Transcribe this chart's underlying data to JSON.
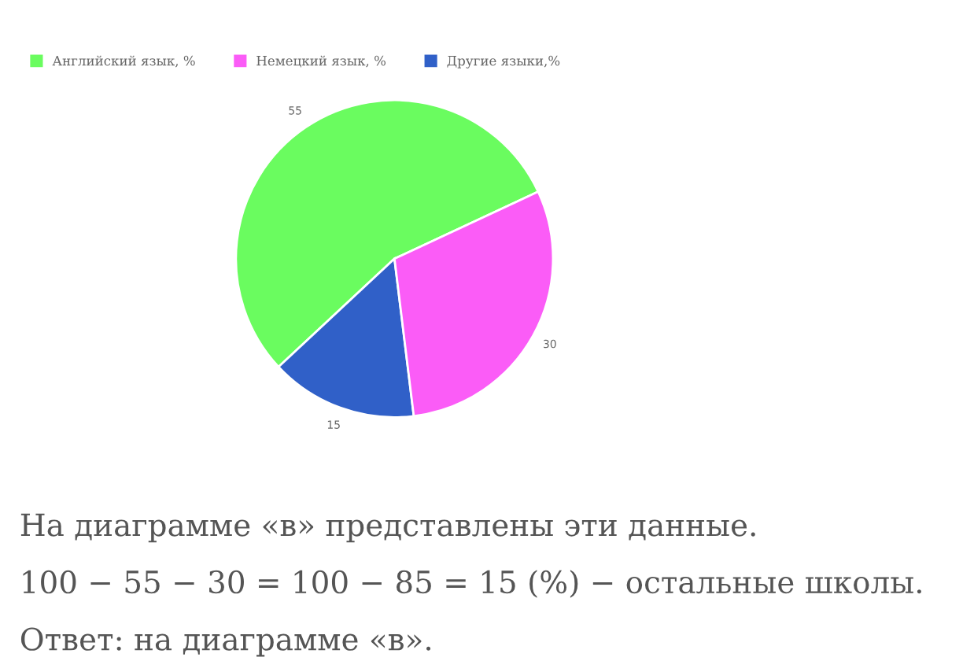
{
  "chart_data": {
    "type": "pie",
    "categories": [
      "Английский язык, %",
      "Другие языки,%",
      "Немецкий язык, %"
    ],
    "values": [
      55,
      15,
      30
    ],
    "colors": [
      "#6afc5f",
      "#3060c8",
      "#fb5cf7"
    ],
    "data_labels": true,
    "legend": "top left",
    "annotations": [
      "На диаграмме «в» представлены эти данные.",
      "100 − 55 − 30 = 100 − 85 = 15 (%) − остальные школы.",
      "Ответ: на диаграмме «в»."
    ]
  }
}
